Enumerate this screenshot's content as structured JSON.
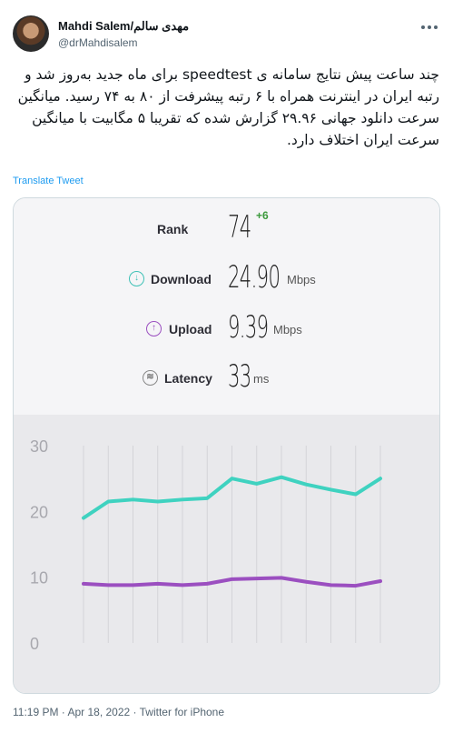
{
  "author": {
    "name": "Mahdi Salem/مهدی سالم",
    "handle": "@drMahdisalem"
  },
  "tweet": {
    "text": "چند ساعت پیش نتایج سامانه ی speedtest برای ماه جدید به‌روز شد و رتبه ایران در اینترنت همراه با ۶ رتبه پیشرفت از ۸۰ به ۷۴ رسید. میانگین سرعت دانلود جهانی ۲۹.۹۶ گزارش شده که تقریبا ۵ مگابیت با میانگین سرعت ایران اختلاف دارد.",
    "translate_label": "Translate Tweet",
    "meta": "11:19 PM · Apr 18, 2022 · Twitter for iPhone"
  },
  "speedtest": {
    "rank": {
      "label": "Rank",
      "value": "74",
      "delta": "+6"
    },
    "download": {
      "label": "Download",
      "value": "24.90",
      "unit": "Mbps",
      "icon": "download-icon"
    },
    "upload": {
      "label": "Upload",
      "value": "9.39",
      "unit": "Mbps",
      "icon": "upload-icon"
    },
    "latency": {
      "label": "Latency",
      "value": "33",
      "unit": "ms",
      "icon": "latency-icon"
    }
  },
  "chart_data": {
    "type": "line",
    "ylim": [
      0,
      30
    ],
    "yticks": [
      "30",
      "20",
      "10",
      "0"
    ],
    "grid": true,
    "series": [
      {
        "color": "#3fd2c0",
        "values": [
          19,
          21.5,
          21.8,
          21.5,
          21.8,
          22,
          25,
          24.2,
          25.2,
          24.1,
          23.3,
          22.6,
          25
        ]
      },
      {
        "color": "#9b4fc0",
        "values": [
          9,
          8.8,
          8.8,
          9,
          8.8,
          9,
          9.7,
          9.8,
          9.9,
          9.3,
          8.8,
          8.7,
          9.4
        ]
      }
    ]
  }
}
